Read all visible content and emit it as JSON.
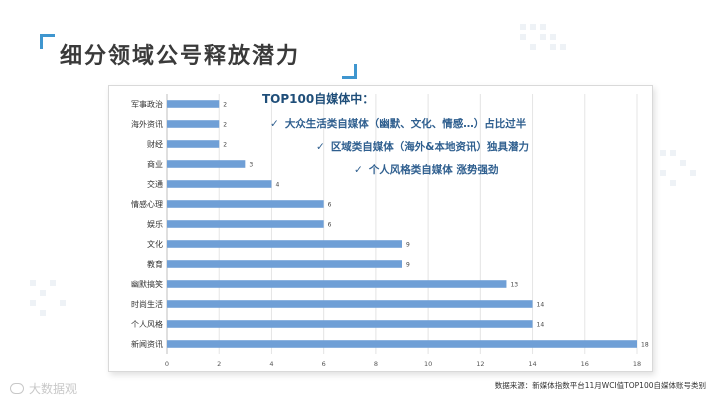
{
  "title": "细分领域公号释放潜力",
  "note": {
    "title": "TOP100自媒体中：",
    "lines": [
      "大众生活类自媒体（幽默、文化、情感…）占比过半",
      "区域类自媒体（海外&本地资讯）独具潜力",
      "个人风格类自媒体 涨势强劲"
    ]
  },
  "source": "数据来源：新媒体指数平台11月WCI值TOP100自媒体账号类别",
  "watermark": "大数据观",
  "colors": {
    "accent": "#3f96cf",
    "bar": "#6f9fd6",
    "note_text": "#2f5f8f"
  },
  "chart_data": {
    "type": "bar",
    "orientation": "horizontal",
    "categories": [
      "军事政治",
      "海外资讯",
      "财经",
      "商业",
      "交通",
      "情感心理",
      "娱乐",
      "文化",
      "教育",
      "幽默搞笑",
      "时尚生活",
      "个人风格",
      "新闻资讯"
    ],
    "values": [
      2,
      2,
      2,
      3,
      4,
      6,
      6,
      9,
      9,
      13,
      14,
      14,
      18
    ],
    "xlim": [
      0,
      18
    ],
    "xticks": [
      0,
      2,
      4,
      6,
      8,
      10,
      12,
      14,
      16,
      18
    ],
    "grid": true,
    "data_labels": true
  }
}
